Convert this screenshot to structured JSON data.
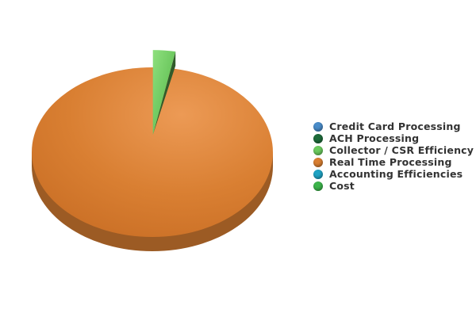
{
  "chart_data": {
    "type": "pie",
    "title": "",
    "style": "3d",
    "legend_position": "right",
    "series": [
      {
        "label": "Credit Card Processing",
        "value": 0,
        "color": "#4A8CC9"
      },
      {
        "label": "ACH Processing",
        "value": 0,
        "color": "#1E6B3A"
      },
      {
        "label": "Collector / CSR Efficiency",
        "value": 3,
        "color": "#6CCB5F"
      },
      {
        "label": "Real Time Processing",
        "value": 97,
        "color": "#D97F32"
      },
      {
        "label": "Accounting Efficiencies",
        "value": 0,
        "color": "#1FA3C4"
      },
      {
        "label": "Cost",
        "value": 0,
        "color": "#3CB44B"
      }
    ]
  }
}
